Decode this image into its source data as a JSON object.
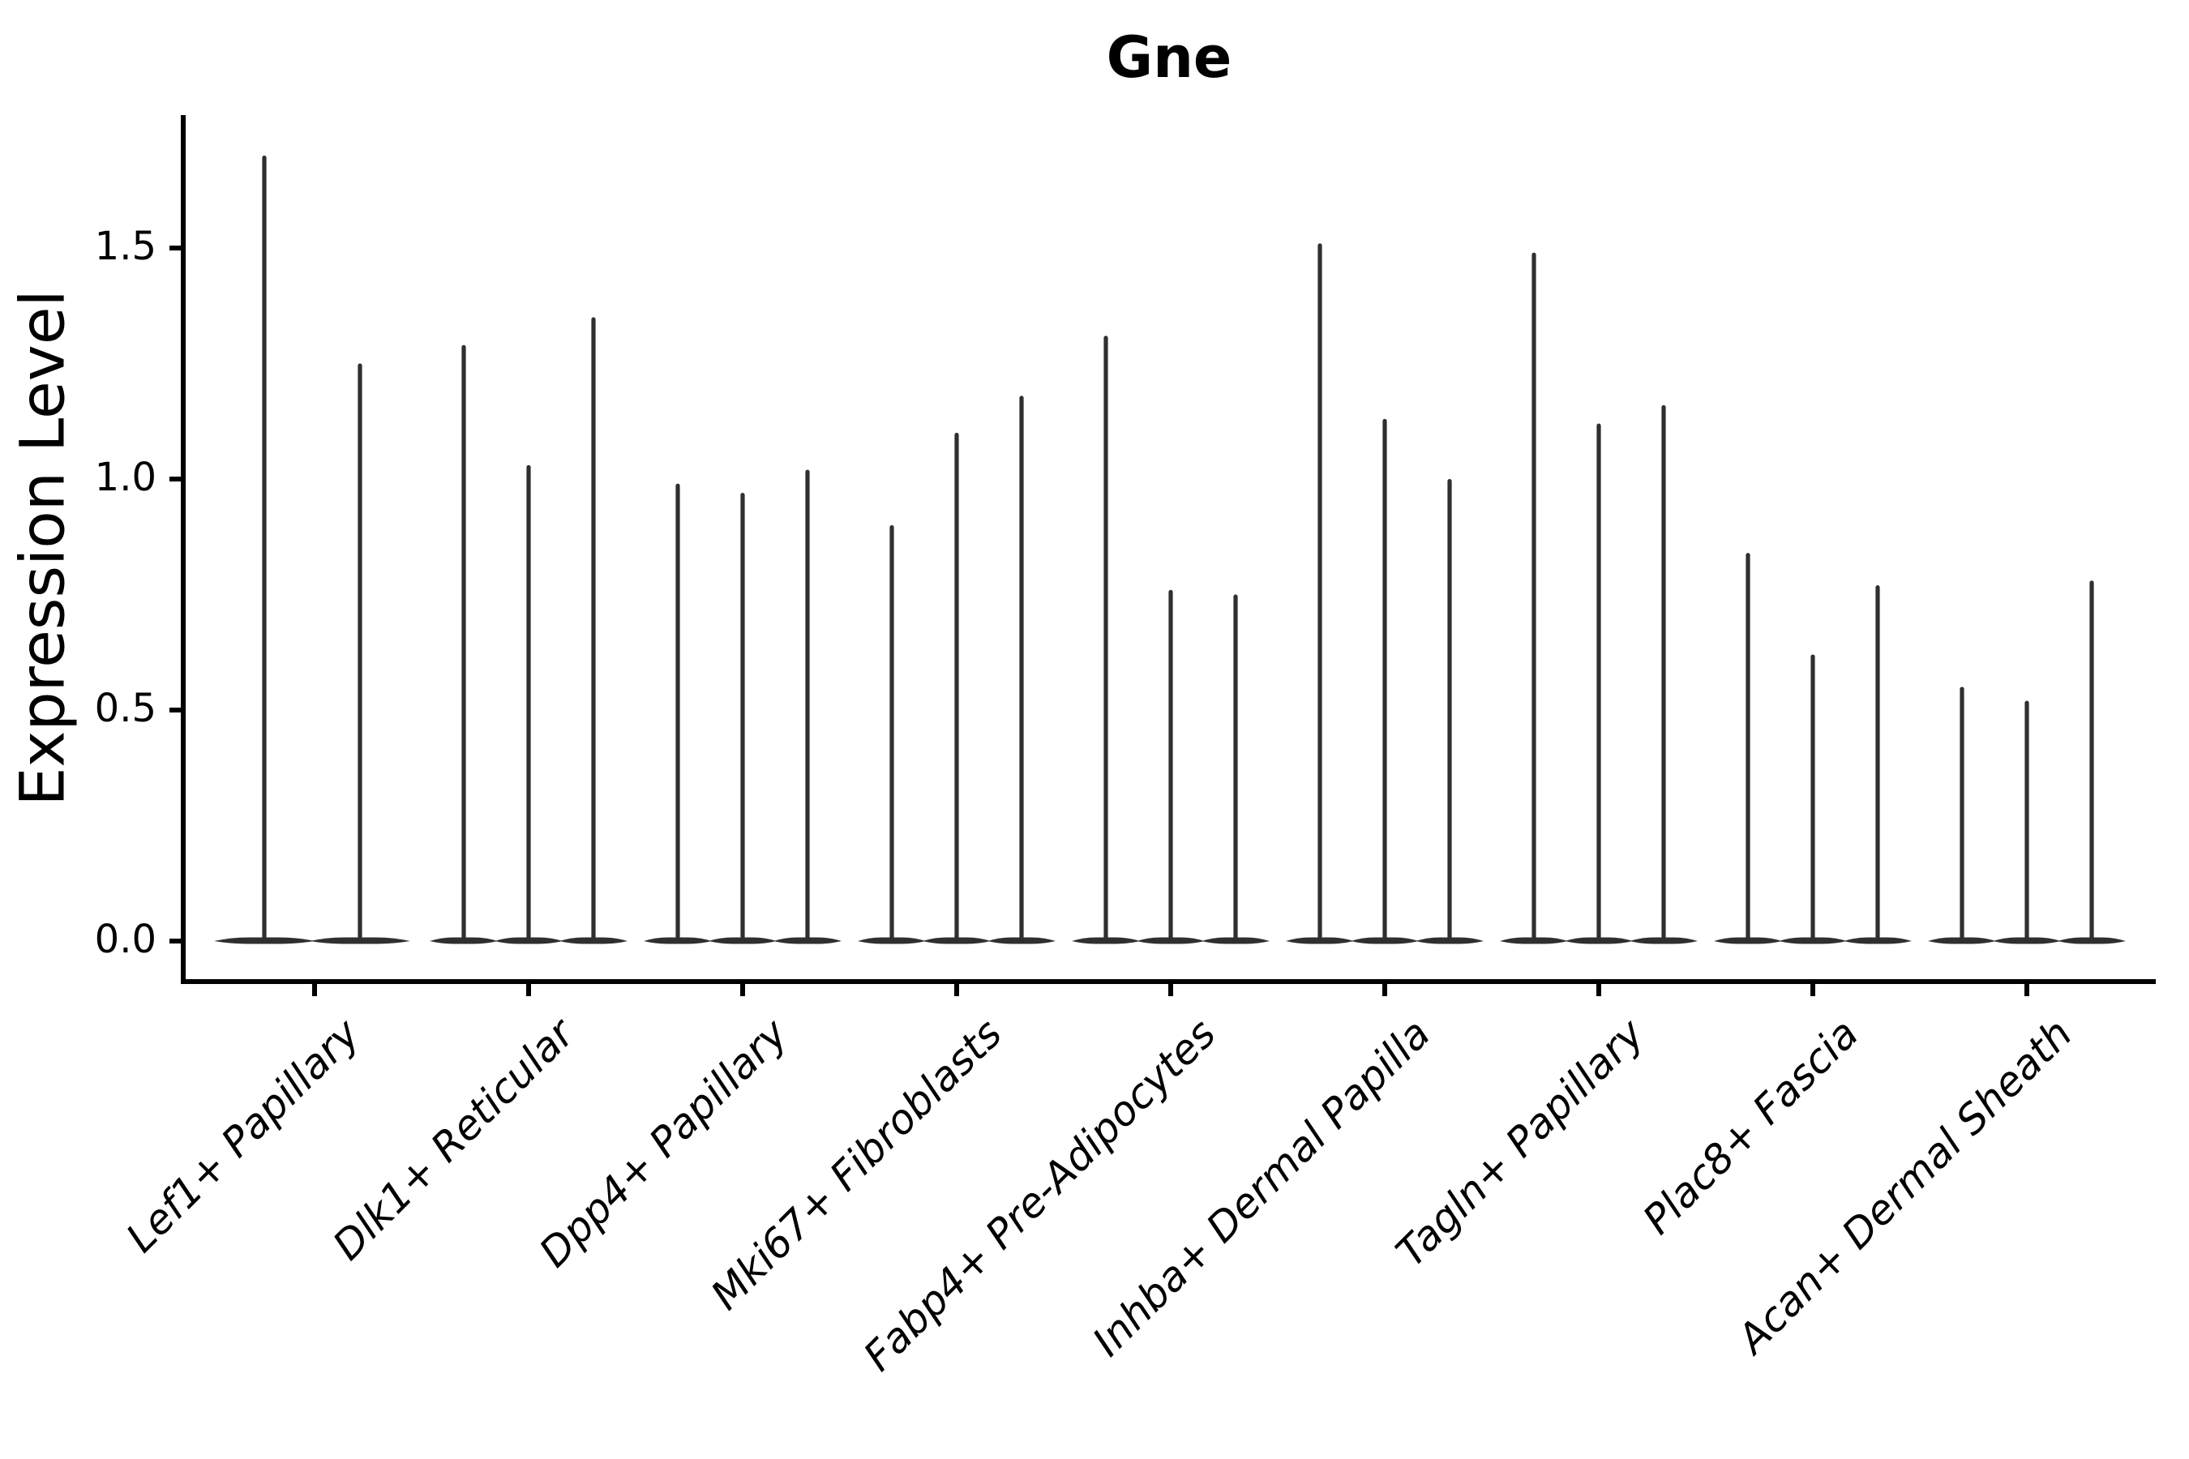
{
  "title": "Gne",
  "axes": {
    "ylabel": "Expression Level",
    "ytick_labels": [
      "0.0",
      "0.5",
      "1.0",
      "1.5"
    ]
  },
  "chart_data": {
    "type": "violin",
    "title": "Gne",
    "xlabel": "",
    "ylabel": "Expression Level",
    "categories": [
      "Lef1+ Papillary",
      "Dlk1+ Reticular",
      "Dpp4+ Papillary",
      "Mki67+ Fibroblasts",
      "Fabp4+ Pre-Adipocytes",
      "Inhba+ Dermal Papilla",
      "Tagln+ Papillary",
      "Plac8+ Fascia",
      "Acan+ Dermal Sheath"
    ],
    "violin_max_values": [
      [
        1.7,
        1.25
      ],
      [
        1.29,
        1.03,
        1.35
      ],
      [
        0.99,
        0.97,
        1.02
      ],
      [
        0.9,
        1.1,
        1.18
      ],
      [
        1.31,
        0.76,
        0.75
      ],
      [
        1.51,
        1.13,
        1.0
      ],
      [
        1.49,
        1.12,
        1.16
      ],
      [
        0.84,
        0.62,
        0.77
      ],
      [
        0.55,
        0.52,
        0.78
      ]
    ],
    "yticks": [
      0.0,
      0.5,
      1.0,
      1.5
    ],
    "ylim": [
      -0.09,
      1.79
    ],
    "grid": false,
    "legend": false,
    "colors": {
      "violin_line": "#2f2f2f",
      "axis": "#000000",
      "background": "#ffffff"
    }
  }
}
